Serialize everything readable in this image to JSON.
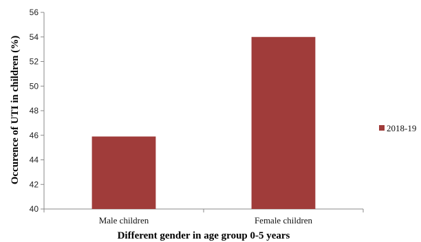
{
  "chart_data": {
    "type": "bar",
    "categories": [
      "Male children",
      "Female children"
    ],
    "series": [
      {
        "name": "2018-19",
        "values": [
          45.9,
          54.0
        ],
        "color": "#A03C3A"
      }
    ],
    "xlabel": "Different gender in age group 0-5 years",
    "ylabel": "Occurence of UTI in children (%)",
    "ylim": [
      40,
      56
    ],
    "yticks": [
      40,
      42,
      44,
      46,
      48,
      50,
      52,
      54,
      56
    ],
    "grid": false,
    "legend": "right"
  }
}
